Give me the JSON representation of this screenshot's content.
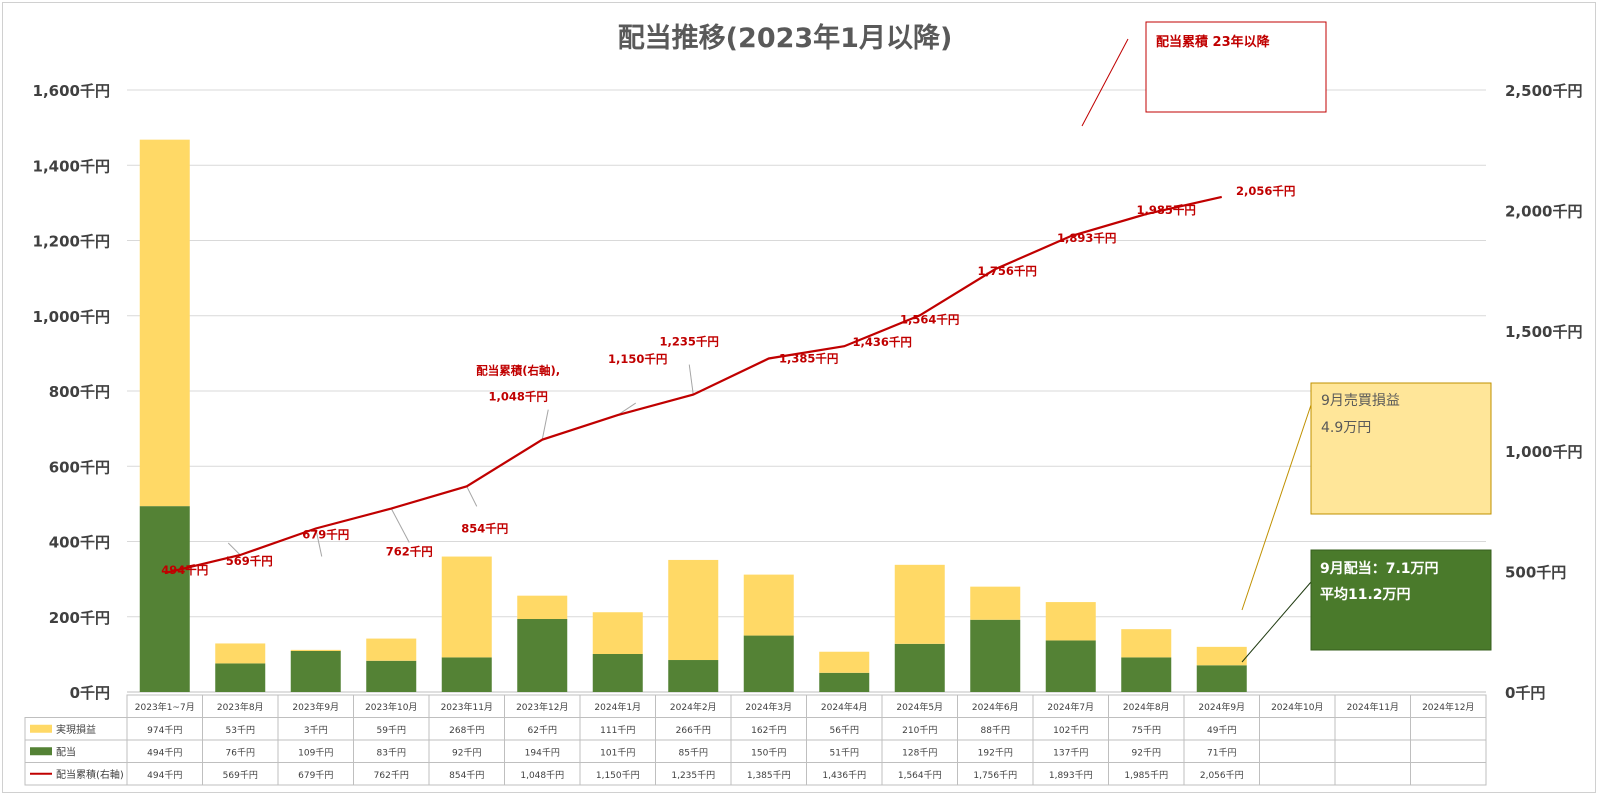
{
  "colors": {
    "realized": "#ffd966",
    "dividend": "#548235",
    "line": "#c00000",
    "grid": "#d9d9d9",
    "box_yellow_fill": "#ffe699",
    "box_yellow_border": "#bf9000",
    "box_green_fill": "#4a7a2b"
  },
  "chart_data": {
    "type": "bar",
    "title": "配当推移(2023年1月以降)",
    "categories": [
      "2023年1~7月",
      "2023年8月",
      "2023年9月",
      "2023年10月",
      "2023年11月",
      "2023年12月",
      "2024年1月",
      "2024年2月",
      "2024年3月",
      "2024年4月",
      "2024年5月",
      "2024年6月",
      "2024年7月",
      "2024年8月",
      "2024年9月",
      "2024年10月",
      "2024年11月",
      "2024年12月"
    ],
    "stacked": true,
    "series": [
      {
        "name": "実現損益",
        "kind": "bar",
        "values": [
          974,
          53,
          3,
          59,
          268,
          62,
          111,
          266,
          162,
          56,
          210,
          88,
          102,
          75,
          49,
          null,
          null,
          null
        ],
        "labels": [
          "974千円",
          "53千円",
          "3千円",
          "59千円",
          "268千円",
          "62千円",
          "111千円",
          "266千円",
          "162千円",
          "56千円",
          "210千円",
          "88千円",
          "102千円",
          "75千円",
          "49千円",
          "",
          "",
          ""
        ]
      },
      {
        "name": "配当",
        "kind": "bar",
        "values": [
          494,
          76,
          109,
          83,
          92,
          194,
          101,
          85,
          150,
          51,
          128,
          192,
          137,
          92,
          71,
          null,
          null,
          null
        ],
        "labels": [
          "494千円",
          "76千円",
          "109千円",
          "83千円",
          "92千円",
          "194千円",
          "101千円",
          "85千円",
          "150千円",
          "51千円",
          "128千円",
          "192千円",
          "137千円",
          "92千円",
          "71千円",
          "",
          "",
          ""
        ]
      },
      {
        "name": "配当累積(右軸)",
        "kind": "line",
        "axis": "right",
        "values": [
          494,
          569,
          679,
          762,
          854,
          1048,
          1150,
          1235,
          1385,
          1436,
          1564,
          1756,
          1893,
          1985,
          2056,
          null,
          null,
          null
        ],
        "labels": [
          "494千円",
          "569千円",
          "679千円",
          "762千円",
          "854千円",
          "1,048千円",
          "1,150千円",
          "1,235千円",
          "1,385千円",
          "1,436千円",
          "1,564千円",
          "1,756千円",
          "1,893千円",
          "1,985千円",
          "2,056千円",
          "",
          "",
          ""
        ]
      }
    ],
    "y_left": {
      "min": 0,
      "max": 1600,
      "ticks": [
        "0千円",
        "200千円",
        "400千円",
        "600千円",
        "800千円",
        "1,000千円",
        "1,200千円",
        "1,400千円",
        "1,600千円"
      ]
    },
    "y_right": {
      "min": 0,
      "max": 2500,
      "ticks": [
        "0千円",
        "500千円",
        "1,000千円",
        "1,500千円",
        "2,000千円",
        "2,500千円"
      ]
    },
    "grid": true,
    "legend": "data-table",
    "line_series_callout": {
      "text_1": "配当累積(右軸),",
      "text_2": "1,048千円"
    }
  },
  "annotations": {
    "cumulative_box": "配当累積 23年以降",
    "trade_box_line1": "9月売買損益",
    "trade_box_line2": "4.9万円",
    "dividend_box_line1": "9月配当：7.1万円",
    "dividend_box_line2": "平均11.2万円"
  }
}
